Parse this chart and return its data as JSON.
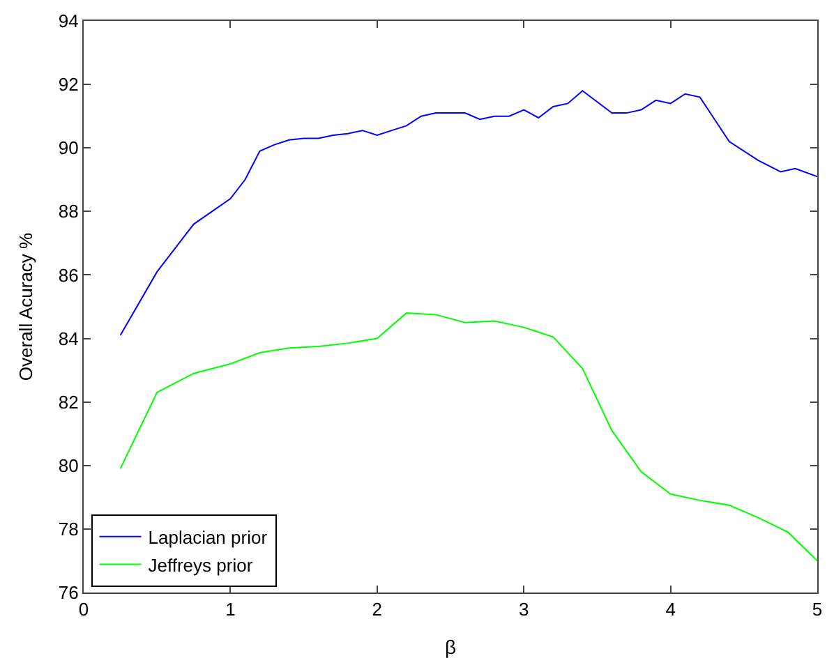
{
  "chart_data": {
    "type": "line",
    "xlabel": "β",
    "ylabel": "Overall Acuracy %",
    "xlim": [
      0,
      5
    ],
    "xticks": [
      0,
      1,
      2,
      3,
      4,
      5
    ],
    "ylim": [
      76,
      94
    ],
    "yticks": [
      76,
      78,
      80,
      82,
      84,
      86,
      88,
      90,
      92,
      94
    ],
    "legend": "bottom left",
    "marker": "none",
    "line_style": "solid",
    "series": [
      {
        "name": "Laplacian prior",
        "color": "#0000ff",
        "x": [
          0.25,
          0.5,
          0.75,
          1.0,
          1.1,
          1.2,
          1.3,
          1.4,
          1.5,
          1.6,
          1.7,
          1.8,
          1.9,
          2.0,
          2.1,
          2.2,
          2.3,
          2.4,
          2.5,
          2.6,
          2.7,
          2.8,
          2.9,
          3.0,
          3.1,
          3.2,
          3.3,
          3.4,
          3.6,
          3.7,
          3.8,
          3.9,
          4.0,
          4.1,
          4.2,
          4.4,
          4.6,
          4.75,
          4.85,
          5.0
        ],
        "values": [
          84.1,
          86.1,
          87.6,
          88.4,
          89.0,
          89.9,
          90.1,
          90.25,
          90.3,
          90.3,
          90.4,
          90.45,
          90.55,
          90.4,
          90.55,
          90.7,
          91.0,
          91.1,
          91.1,
          91.1,
          90.9,
          91.0,
          91.0,
          91.2,
          90.95,
          91.3,
          91.4,
          91.8,
          91.1,
          91.1,
          91.2,
          91.5,
          91.4,
          91.7,
          91.6,
          90.2,
          89.6,
          89.25,
          89.35,
          89.1
        ]
      },
      {
        "name": "Jeffreys prior",
        "color": "#00ff00",
        "x": [
          0.25,
          0.5,
          0.75,
          1.0,
          1.2,
          1.4,
          1.6,
          1.8,
          2.0,
          2.2,
          2.4,
          2.6,
          2.8,
          3.0,
          3.2,
          3.4,
          3.6,
          3.8,
          4.0,
          4.2,
          4.4,
          4.6,
          4.8,
          5.0
        ],
        "values": [
          79.9,
          82.3,
          82.9,
          83.2,
          83.55,
          83.7,
          83.75,
          83.85,
          84.0,
          84.8,
          84.75,
          84.5,
          84.55,
          84.35,
          84.05,
          83.05,
          81.1,
          79.8,
          79.1,
          78.9,
          78.75,
          78.35,
          77.9,
          77.0
        ]
      }
    ]
  }
}
